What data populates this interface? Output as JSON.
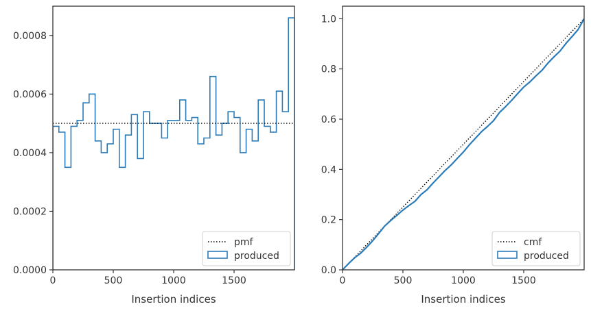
{
  "chart_data": [
    {
      "type": "histogram",
      "xlabel": "Insertion indices",
      "ylabel": "",
      "xlim": [
        0,
        2000
      ],
      "ylim": [
        0,
        0.0009
      ],
      "xticks": [
        0,
        500,
        1000,
        1500
      ],
      "xtick_labels": [
        "0",
        "500",
        "1000",
        "1500"
      ],
      "yticks": [
        0,
        0.0002,
        0.0004,
        0.0006,
        0.0008
      ],
      "ytick_labels": [
        "0.0000",
        "0.0002",
        "0.0004",
        "0.0006",
        "0.0008"
      ],
      "legend": {
        "position": "lower-right",
        "entries": [
          {
            "label": "pmf",
            "style": "dotted-line"
          },
          {
            "label": "produced",
            "style": "step-patch"
          }
        ]
      },
      "reference": {
        "name": "pmf",
        "value": 0.0005
      },
      "bins": {
        "start": 0,
        "width": 50
      },
      "series": [
        {
          "name": "produced",
          "values": [
            0.00049,
            0.00047,
            0.00035,
            0.00049,
            0.00051,
            0.00057,
            0.0006,
            0.00044,
            0.0004,
            0.00043,
            0.00048,
            0.00035,
            0.00046,
            0.00053,
            0.00038,
            0.00054,
            0.0005,
            0.0005,
            0.00045,
            0.00051,
            0.00051,
            0.00058,
            0.00051,
            0.00052,
            0.00043,
            0.00045,
            0.00066,
            0.00046,
            0.0005,
            0.00054,
            0.00052,
            0.0004,
            0.00048,
            0.00044,
            0.00058,
            0.00049,
            0.00047,
            0.00061,
            0.00054,
            0.00086
          ]
        }
      ],
      "colors": {
        "produced": "#2b7bb9",
        "reference": "#000000"
      }
    },
    {
      "type": "line",
      "xlabel": "Insertion indices",
      "ylabel": "",
      "xlim": [
        0,
        2000
      ],
      "ylim": [
        0,
        1.05
      ],
      "xticks": [
        0,
        500,
        1000,
        1500
      ],
      "xtick_labels": [
        "0",
        "500",
        "1000",
        "1500"
      ],
      "yticks": [
        0,
        0.2,
        0.4,
        0.6,
        0.8,
        1.0
      ],
      "ytick_labels": [
        "0.0",
        "0.2",
        "0.4",
        "0.6",
        "0.8",
        "1.0"
      ],
      "legend": {
        "position": "lower-right",
        "entries": [
          {
            "label": "cmf",
            "style": "dotted-line"
          },
          {
            "label": "produced",
            "style": "step-patch"
          }
        ]
      },
      "reference": {
        "name": "cmf",
        "x": [
          0,
          2000
        ],
        "y": [
          0,
          1.0
        ]
      },
      "series": [
        {
          "name": "produced",
          "x": [
            0,
            50,
            100,
            150,
            200,
            250,
            300,
            350,
            400,
            450,
            500,
            550,
            600,
            650,
            700,
            750,
            800,
            850,
            900,
            950,
            1000,
            1050,
            1100,
            1150,
            1200,
            1250,
            1300,
            1350,
            1400,
            1450,
            1500,
            1550,
            1600,
            1650,
            1700,
            1750,
            1800,
            1850,
            1900,
            1950,
            2000
          ],
          "y": [
            0,
            0.025,
            0.048,
            0.066,
            0.09,
            0.116,
            0.145,
            0.175,
            0.197,
            0.217,
            0.238,
            0.256,
            0.273,
            0.3,
            0.319,
            0.346,
            0.371,
            0.396,
            0.418,
            0.444,
            0.469,
            0.498,
            0.524,
            0.55,
            0.571,
            0.594,
            0.627,
            0.65,
            0.675,
            0.702,
            0.728,
            0.748,
            0.772,
            0.794,
            0.823,
            0.848,
            0.871,
            0.902,
            0.929,
            0.957,
            1.0
          ]
        }
      ],
      "colors": {
        "produced": "#2b7bb9",
        "reference": "#000000"
      }
    }
  ]
}
